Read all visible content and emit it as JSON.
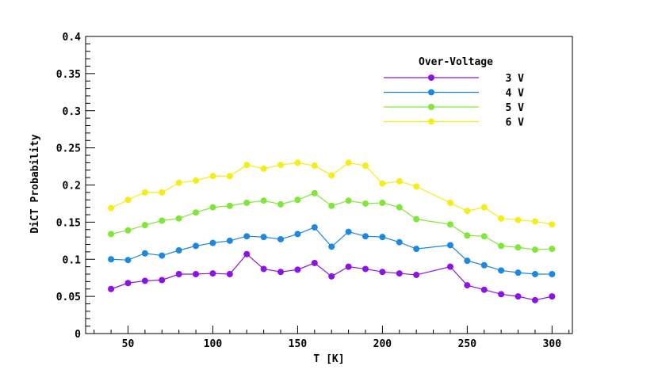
{
  "chart_data": {
    "type": "line",
    "xlabel": "T [K]",
    "ylabel": "DiCT Probability",
    "xlim": [
      25,
      312
    ],
    "ylim": [
      0,
      0.4
    ],
    "xticks": [
      50,
      100,
      150,
      200,
      250,
      300
    ],
    "yticks": [
      0,
      0.05,
      0.1,
      0.15,
      0.2,
      0.25,
      0.3,
      0.35,
      0.4
    ],
    "yticklabels": [
      "0",
      "0.05",
      "0.1",
      "0.15",
      "0.2",
      "0.25",
      "0.3",
      "0.35",
      "0.4"
    ],
    "grid": false,
    "legend": {
      "title": "Over-Voltage",
      "placement": "top-right"
    },
    "x": [
      40,
      50,
      60,
      70,
      80,
      90,
      100,
      110,
      120,
      130,
      140,
      150,
      160,
      170,
      180,
      190,
      200,
      210,
      220,
      240,
      250,
      260,
      270,
      280,
      290,
      300
    ],
    "series": [
      {
        "name": "3 V",
        "color": "#8b13e6",
        "values": [
          0.06,
          0.068,
          0.071,
          0.072,
          0.08,
          0.08,
          0.081,
          0.08,
          0.107,
          0.087,
          0.083,
          0.086,
          0.095,
          0.077,
          0.09,
          0.087,
          0.083,
          0.081,
          0.079,
          0.09,
          0.065,
          0.059,
          0.053,
          0.05,
          0.045,
          0.05
        ]
      },
      {
        "name": "4 V",
        "color": "#1e88e0",
        "values": [
          0.1,
          0.099,
          0.108,
          0.105,
          0.112,
          0.118,
          0.122,
          0.125,
          0.131,
          0.13,
          0.127,
          0.134,
          0.143,
          0.117,
          0.137,
          0.131,
          0.13,
          0.123,
          0.114,
          0.119,
          0.098,
          0.092,
          0.085,
          0.082,
          0.08,
          0.08
        ]
      },
      {
        "name": "5 V",
        "color": "#82e63a",
        "values": [
          0.134,
          0.139,
          0.146,
          0.152,
          0.155,
          0.163,
          0.17,
          0.172,
          0.176,
          0.179,
          0.174,
          0.18,
          0.189,
          0.172,
          0.179,
          0.175,
          0.176,
          0.17,
          0.154,
          0.147,
          0.132,
          0.131,
          0.118,
          0.116,
          0.113,
          0.114
        ]
      },
      {
        "name": "6 V",
        "color": "#f3ee18",
        "values": [
          0.169,
          0.18,
          0.19,
          0.19,
          0.203,
          0.206,
          0.212,
          0.212,
          0.227,
          0.222,
          0.227,
          0.23,
          0.226,
          0.213,
          0.23,
          0.226,
          0.202,
          0.205,
          0.198,
          0.176,
          0.165,
          0.17,
          0.155,
          0.153,
          0.151,
          0.147
        ]
      }
    ]
  }
}
